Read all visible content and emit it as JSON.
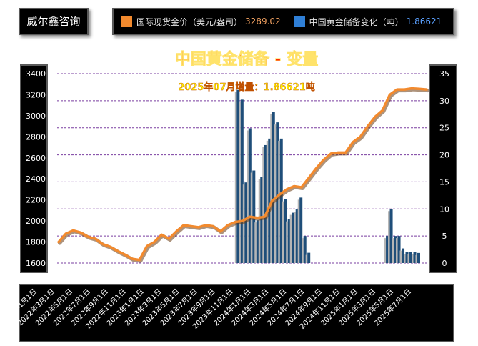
{
  "brand": "威尔鑫咨询",
  "legend": {
    "gold_price_label": "国际现货金价（美元/盎司）",
    "gold_price_value": "3289.02",
    "reserve_label": "中国黄金储备变化（吨）",
    "reserve_value": "1.86621"
  },
  "colors": {
    "gold_line": "#f28a2e",
    "gold_value_text": "#f0a060",
    "reserve_bar": "#1f4e79",
    "reserve_value_text": "#5aa0ff",
    "title": "#ff2a00",
    "subtitle": "#ffee00",
    "gridline": "#7a3fa0"
  },
  "chart_data": {
    "type": "bar",
    "title": "中国黄金储备 - 变量",
    "subtitle": "2025年07月增量：1.86621吨",
    "left_axis": {
      "min": 1600,
      "max": 3400,
      "ticks": [
        1600,
        1800,
        2000,
        2200,
        2400,
        2600,
        2800,
        3000,
        3200,
        3400
      ]
    },
    "right_axis": {
      "min": 0,
      "max": 35,
      "ticks": [
        0,
        5,
        10,
        15,
        20,
        25,
        30,
        35
      ]
    },
    "x_tick_labels": [
      "2022年1月1日",
      "2022年3月1日",
      "2022年5月1日",
      "2022年7月1日",
      "2022年9月1日",
      "2022年11月1日",
      "2023年1月1日",
      "2023年3月1日",
      "2023年5月1日",
      "2023年7月1日",
      "2023年9月1日",
      "2023年11月1日",
      "2024年1月1日",
      "2024年3月1日",
      "2024年5月1日",
      "2024年7月1日",
      "2024年9月1日",
      "2024年11月1日",
      "2025年1月1日",
      "2025年3月1日",
      "2025年5月1日",
      "2025年7月1日"
    ],
    "series": [
      {
        "name": "国际现货金价（美元/盎司）",
        "type": "line",
        "axis": "left",
        "values": [
          1800,
          1880,
          1910,
          1890,
          1850,
          1830,
          1780,
          1755,
          1715,
          1680,
          1640,
          1630,
          1760,
          1800,
          1870,
          1830,
          1900,
          1960,
          1950,
          1940,
          1960,
          1950,
          1900,
          1960,
          1990,
          2000,
          2040,
          2030,
          2040,
          2190,
          2250,
          2300,
          2330,
          2320,
          2410,
          2500,
          2580,
          2640,
          2650,
          2650,
          2750,
          2800,
          2900,
          2990,
          3050,
          3200,
          3250,
          3250,
          3260,
          3256,
          3250
        ]
      },
      {
        "name": "中国黄金储备变化（吨）",
        "type": "bar",
        "axis": "right",
        "values": [
          0,
          0,
          0,
          0,
          0,
          0,
          0,
          0,
          0,
          0,
          0,
          0,
          0,
          0,
          0,
          0,
          0,
          0,
          0,
          0,
          0,
          0,
          0,
          0,
          0,
          32,
          30.2,
          14.9,
          24.9,
          17.1,
          7.9,
          15.9,
          21.8,
          23.0,
          27.9,
          26.0,
          23.0,
          11.8,
          8.1,
          9.3,
          9.9,
          12.1,
          5.0,
          1.9,
          0,
          0,
          0,
          0,
          0,
          0,
          0,
          0,
          0,
          0,
          0,
          0,
          0,
          0,
          0,
          0,
          0,
          0,
          0,
          5,
          10,
          5,
          5,
          2.7,
          2.1,
          2,
          2.1,
          1.86621
        ]
      }
    ]
  }
}
